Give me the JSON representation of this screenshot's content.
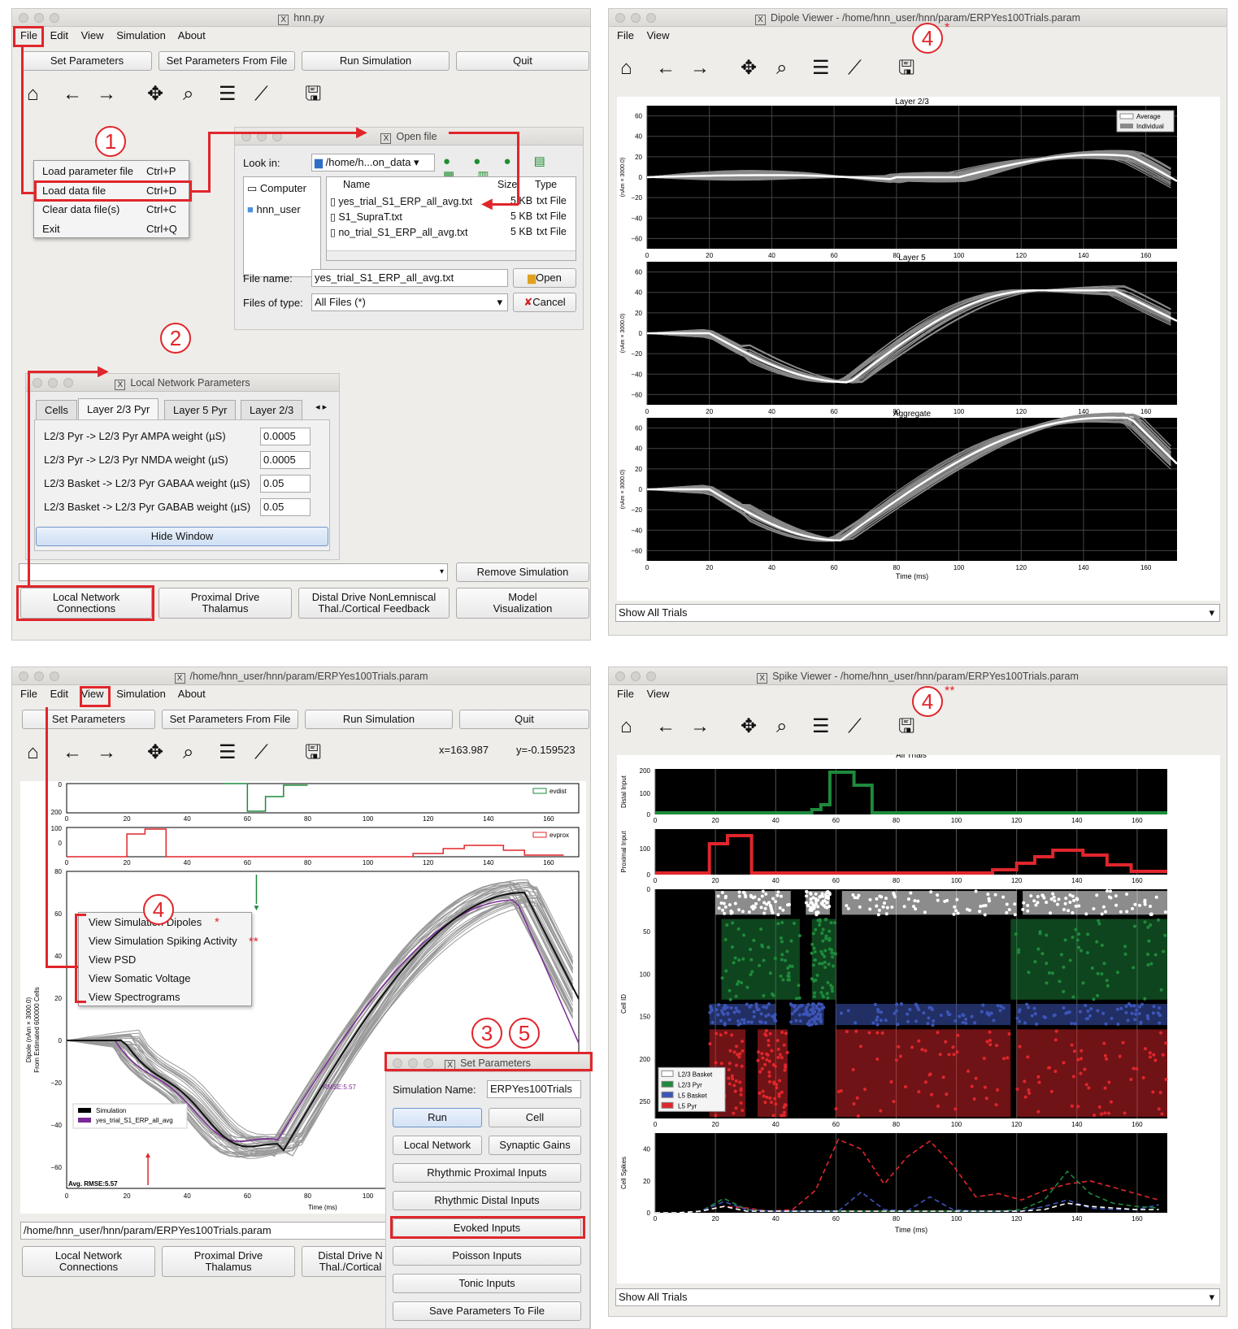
{
  "main_window": {
    "title": "hnn.py",
    "menu": [
      "File",
      "Edit",
      "View",
      "Simulation",
      "About"
    ],
    "buttons": [
      "Set Parameters",
      "Set Parameters From File",
      "Run Simulation",
      "Quit"
    ],
    "file_menu": [
      {
        "label": "Load parameter file",
        "shortcut": "Ctrl+P"
      },
      {
        "label": "Load data file",
        "shortcut": "Ctrl+D"
      },
      {
        "label": "Clear data file(s)",
        "shortcut": "Ctrl+C"
      },
      {
        "label": "Exit",
        "shortcut": "Ctrl+Q"
      }
    ],
    "remove_button": "Remove Simulation",
    "bottom_buttons": [
      {
        "l1": "Local Network",
        "l2": "Connections"
      },
      {
        "l1": "Proximal Drive",
        "l2": "Thalamus"
      },
      {
        "l1": "Distal Drive NonLemniscal",
        "l2": "Thal./Cortical Feedback"
      },
      {
        "l1": "Model",
        "l2": "Visualization"
      }
    ]
  },
  "open_file": {
    "title": "Open file",
    "look_in_label": "Look in:",
    "look_in_value": "/home/h...on_data",
    "places": [
      "Computer",
      "hnn_user"
    ],
    "columns": [
      "Name",
      "Size",
      "Type"
    ],
    "files": [
      {
        "name": "yes_trial_S1_ERP_all_avg.txt",
        "size": "5 KB",
        "type": "txt File"
      },
      {
        "name": "S1_SupraT.txt",
        "size": "5 KB",
        "type": "txt File"
      },
      {
        "name": "no_trial_S1_ERP_all_avg.txt",
        "size": "5 KB",
        "type": "txt File"
      }
    ],
    "file_name_label": "File name:",
    "file_name_value": "yes_trial_S1_ERP_all_avg.txt",
    "files_type_label": "Files of type:",
    "files_type_value": "All Files (*)",
    "open": "Open",
    "cancel": "Cancel"
  },
  "local_net": {
    "title": "Local Network Parameters",
    "tabs": [
      "Cells",
      "Layer 2/3 Pyr",
      "Layer 5 Pyr",
      "Layer 2/3"
    ],
    "rows": [
      {
        "label": "L2/3 Pyr -> L2/3 Pyr AMPA weight (µS)",
        "value": "0.0005"
      },
      {
        "label": "L2/3 Pyr -> L2/3 Pyr NMDA weight (µS)",
        "value": "0.0005"
      },
      {
        "label": "L2/3 Basket -> L2/3 Pyr GABAA weight (µS)",
        "value": "0.05"
      },
      {
        "label": "L2/3 Basket -> L2/3 Pyr GABAB weight (µS)",
        "value": "0.05"
      }
    ],
    "hide": "Hide Window"
  },
  "dipole": {
    "title": "Dipole Viewer - /home/hnn_user/hnn/param/ERPYes100Trials.param",
    "menu": [
      "File",
      "View"
    ],
    "panels": [
      "Layer 2/3",
      "Layer 5",
      "Aggregate"
    ],
    "ylabel": "(nAm × 3000.0)",
    "yticks": [
      "60",
      "40",
      "20",
      "0",
      "−20",
      "−40",
      "−60"
    ],
    "xticks": [
      "0",
      "20",
      "40",
      "60",
      "80",
      "100",
      "120",
      "140",
      "160"
    ],
    "xlabel": "Time (ms)",
    "legend": [
      "Average",
      "Individual"
    ],
    "show": "Show All Trials"
  },
  "sim_window": {
    "title": "/home/hnn_user/hnn/param/ERPYes100Trials.param",
    "menu": [
      "File",
      "Edit",
      "View",
      "Simulation",
      "About"
    ],
    "buttons": [
      "Set Parameters",
      "Set Parameters From File",
      "Run Simulation",
      "Quit"
    ],
    "x_coord": "x=163.987",
    "y_coord": "y=-0.159523",
    "view_menu": [
      "View Simulation Dipoles",
      "View Simulation Spiking Activity",
      "View PSD",
      "View Somatic Voltage",
      "View Spectrograms"
    ],
    "evdist": "evdist",
    "evprox": "evprox",
    "ylabel1": "Dipole (nAm × 3000.0)",
    "ylabel2": "From Estimated 600000 Cells",
    "xlabel": "Time (ms)",
    "legend": [
      "Simulation",
      "yes_trial_S1_ERP_all_avg"
    ],
    "rmse": "RMSE:5.57",
    "avg_rmse": "Avg. RMSE:5.57",
    "path": "/home/hnn_user/hnn/param/ERPYes100Trials.param",
    "bottom_buttons": [
      {
        "l1": "Local Network",
        "l2": "Connections"
      },
      {
        "l1": "Proximal Drive",
        "l2": "Thalamus"
      },
      {
        "l1": "Distal Drive N",
        "l2": "Thal./Cortical"
      }
    ],
    "yticks_main": [
      "80",
      "60",
      "40",
      "20",
      "0",
      "−20",
      "−40",
      "−60"
    ],
    "xticks": [
      "0",
      "20",
      "40",
      "60",
      "80",
      "100",
      "120",
      "140",
      "160"
    ]
  },
  "set_params": {
    "title": "Set Parameters",
    "sim_name_label": "Simulation Name:",
    "sim_name": "ERPYes100Trials",
    "run": "Run",
    "cell": "Cell",
    "local": "Local Network",
    "gains": "Synaptic Gains",
    "wide": [
      "Rhythmic Proximal Inputs",
      "Rhythmic Distal Inputs",
      "Evoked Inputs",
      "Poisson Inputs",
      "Tonic Inputs",
      "Save Parameters To File"
    ]
  },
  "spike": {
    "title": "Spike Viewer - /home/hnn_user/hnn/param/ERPYes100Trials.param",
    "menu": [
      "File",
      "View"
    ],
    "plot_title": "All Trials",
    "distal": "Distal Input",
    "proximal": "Proximal Input",
    "cellid": "Cell ID",
    "cellspikes": "Cell Spikes",
    "legend": [
      "L2/3 Basket",
      "L2/3 Pyr",
      "L5 Basket",
      "L5 Pyr"
    ],
    "xlabel": "Time (ms)",
    "show": "Show All Trials"
  },
  "annotations": {
    "n1": "1",
    "n2": "2",
    "n3": "3",
    "n4": "4",
    "n5": "5",
    "star1": "*",
    "star2": "**"
  },
  "colors": {
    "accent": "#e0262b",
    "green": "#1e8a3c",
    "blue": "#3d55b8",
    "purple": "#7b2a95"
  }
}
